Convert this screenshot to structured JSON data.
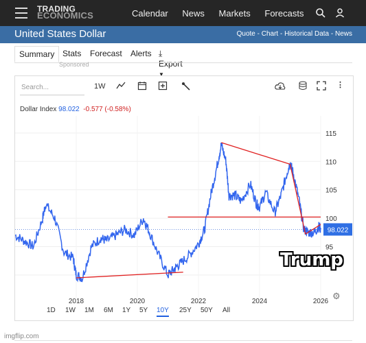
{
  "brand": {
    "line1": "TRADING",
    "line2": "ECONOMICS"
  },
  "nav": {
    "items": [
      "Calendar",
      "News",
      "Markets",
      "Forecasts"
    ]
  },
  "icons": {
    "menu": "hamburger-menu-icon",
    "search": "search-icon",
    "user": "user-icon"
  },
  "page": {
    "title": "United States Dollar",
    "links": "Quote - Chart - Historical Data - News"
  },
  "tabs": {
    "summary": "Summary",
    "stats": "Stats",
    "forecast": "Forecast",
    "alerts": "Alerts",
    "export": "Export"
  },
  "sponsored": "Sponsored",
  "toolbar": {
    "search_placeholder": "Search...",
    "interval": "1W"
  },
  "legend": {
    "name": "Dollar Index",
    "value": "98.022",
    "change": "-0.577 (-0.58%)"
  },
  "periods": [
    "1D",
    "1W",
    "1M",
    "6M",
    "1Y",
    "5Y",
    "10Y",
    "25Y",
    "50Y",
    "All"
  ],
  "selected_period": "10Y",
  "overlay": {
    "caption": "Trump",
    "watermark": "imgflip.com"
  },
  "colors": {
    "price_line": "#3366ee",
    "trend_lines": "#e02020",
    "nav_bg": "#262626",
    "title_bar": "#3a6da4"
  },
  "chart_data": {
    "type": "line",
    "series": [
      {
        "name": "Dollar Index",
        "x": [
          2016.0,
          2016.3,
          2016.6,
          2016.9,
          2017.0,
          2017.3,
          2017.6,
          2017.9,
          2018.0,
          2018.2,
          2018.5,
          2018.8,
          2019.0,
          2019.3,
          2019.6,
          2019.9,
          2020.2,
          2020.4,
          2020.7,
          2021.0,
          2021.2,
          2021.4,
          2021.7,
          2022.0,
          2022.2,
          2022.4,
          2022.6,
          2022.75,
          2022.9,
          2023.0,
          2023.2,
          2023.4,
          2023.7,
          2023.9,
          2024.0,
          2024.2,
          2024.5,
          2024.7,
          2024.9,
          2025.0,
          2025.1,
          2025.3,
          2025.45,
          2025.6,
          2025.8,
          2025.95,
          2026.0
        ],
        "values": [
          97,
          96,
          95,
          100,
          102.5,
          100,
          94,
          93,
          90,
          89.5,
          95,
          96.5,
          96,
          97,
          98,
          97,
          100,
          97.5,
          93.5,
          90,
          91,
          92,
          93.5,
          95.5,
          98,
          104,
          109,
          113,
          110,
          104,
          104,
          103,
          106,
          102.5,
          102,
          104.5,
          101,
          104,
          108,
          109.8,
          108,
          103,
          98,
          97.5,
          97.5,
          98.6,
          98.02
        ]
      }
    ],
    "xlabel": "",
    "ylabel": "",
    "ylim": [
      86,
      118
    ],
    "xlim": [
      2016,
      2026
    ],
    "yticks": [
      95,
      100,
      105,
      110,
      115
    ],
    "xticks": [
      "2018",
      "2020",
      "2022",
      "2024",
      "2026"
    ],
    "current_value_label": "98.022",
    "reference_level": 98.022,
    "annotations": [
      {
        "kind": "trendline",
        "from": [
          2018.0,
          89.5
        ],
        "to": [
          2021.5,
          90.5
        ]
      },
      {
        "kind": "trendline",
        "from": [
          2022.75,
          113.3
        ],
        "to": [
          2025.0,
          109.5
        ]
      },
      {
        "kind": "trendline",
        "from": [
          2025.0,
          109.5
        ],
        "to": [
          2025.5,
          97.2
        ]
      },
      {
        "kind": "trendline",
        "from": [
          2025.5,
          97.2
        ],
        "to": [
          2026.0,
          98.9
        ]
      },
      {
        "kind": "horizontal",
        "from": [
          2021.0,
          100.2
        ],
        "to": [
          2026.0,
          100.2
        ]
      }
    ]
  }
}
